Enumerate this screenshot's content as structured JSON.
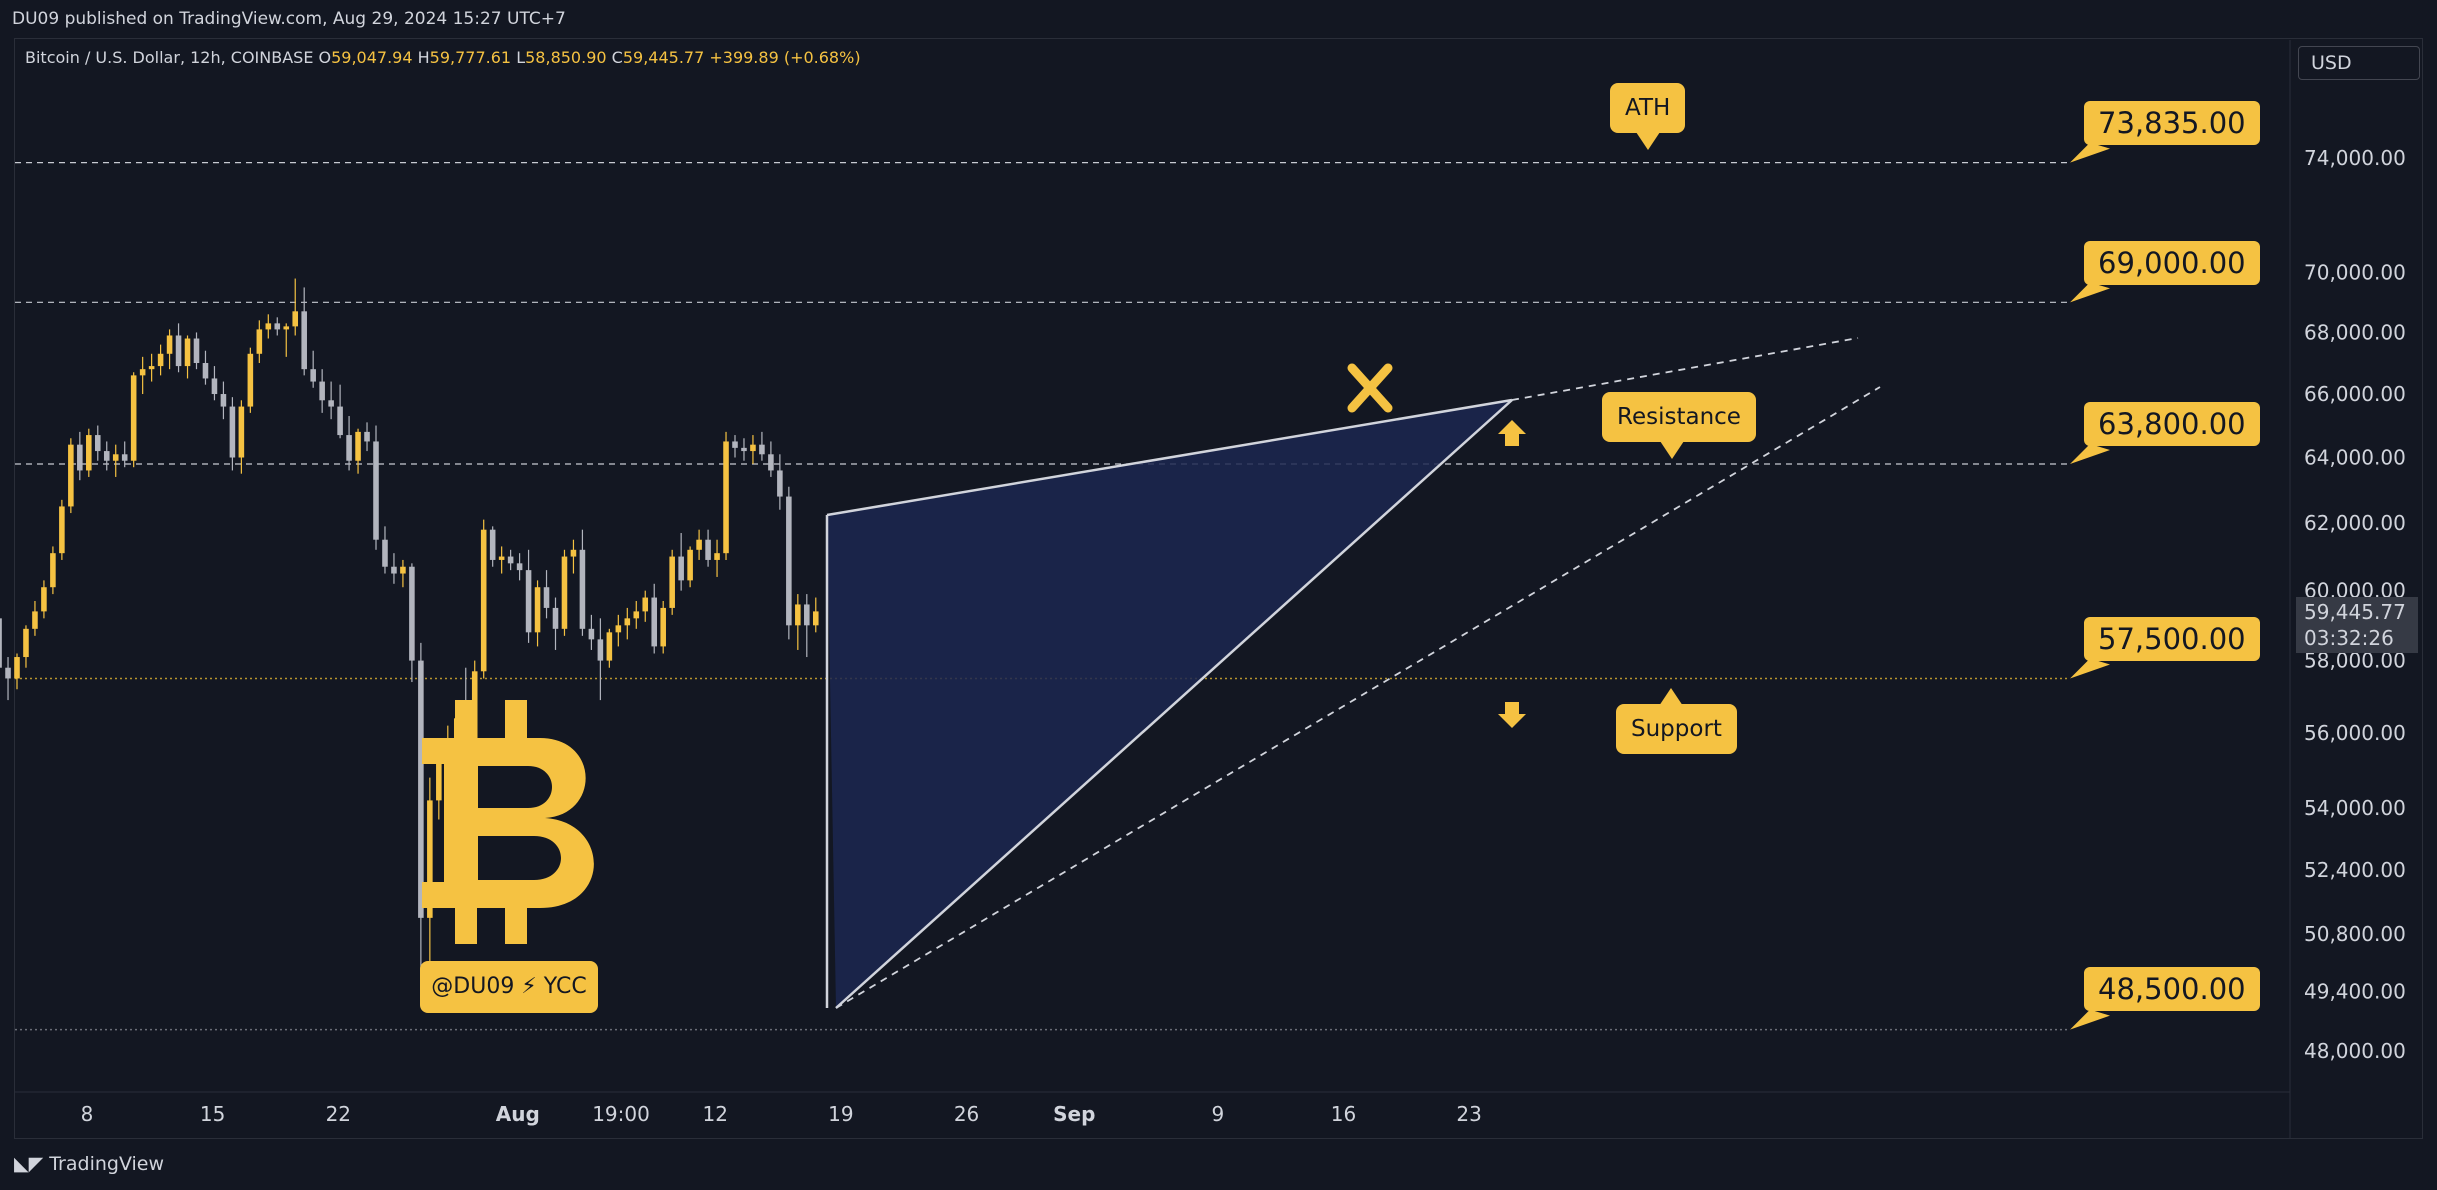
{
  "header": {
    "published": "DU09 published on TradingView.com, Aug 29, 2024 15:27 UTC+7"
  },
  "legend": {
    "symbol": "Bitcoin / U.S. Dollar, 12h, COINBASE",
    "open_key": "O",
    "open": "59,047.94",
    "high_key": "H",
    "high": "59,777.61",
    "low_key": "L",
    "low": "58,850.90",
    "close_key": "C",
    "close": "59,445.77",
    "change": "+399.89 (+0.68%)"
  },
  "currency": "USD",
  "footer": {
    "brand": "TradingView"
  },
  "colors": {
    "background": "#131722",
    "accent": "#f5c242",
    "bear": "#b2b5be",
    "wedge_fill": "#1c2750",
    "text": "#d1d4dc"
  },
  "watermark": {
    "icon": "bitcoin-logo-icon",
    "tag": "@DU09 ⚡ YCC"
  },
  "annotations": {
    "ath": "ATH",
    "resistance": "Resistance",
    "support": "Support",
    "cross_icon": "x-mark-icon",
    "up_icon": "arrow-up-icon",
    "down_icon": "arrow-down-icon"
  },
  "current_price": {
    "price": "59,445.77",
    "countdown": "03:32:26"
  },
  "chart_data": {
    "type": "candlestick",
    "scale": "log",
    "ylim": [
      47500,
      76000
    ],
    "y_ticks": [
      "74,000.00",
      "70,000.00",
      "68,000.00",
      "66,000.00",
      "64,000.00",
      "62,000.00",
      "60,000.00",
      "58,000.00",
      "56,000.00",
      "54,000.00",
      "52,400.00",
      "50,800.00",
      "49,400.00",
      "48,000.00"
    ],
    "y_tick_values": [
      74000,
      70000,
      68000,
      66000,
      64000,
      62000,
      60000,
      58000,
      56000,
      54000,
      52400,
      50800,
      49400,
      48000
    ],
    "x_ticks": [
      "8",
      "15",
      "22",
      "Aug",
      "19:00",
      "12",
      "19",
      "26",
      "Sep",
      "9",
      "16",
      "23"
    ],
    "x_tick_days": [
      7.5,
      14.5,
      21.5,
      31.5,
      37.25,
      42.5,
      49.5,
      56.5,
      62.5,
      70.5,
      77.5,
      84.5
    ],
    "levels": [
      {
        "value": 73835,
        "label": "73,835.00"
      },
      {
        "value": 69000,
        "label": "69,000.00"
      },
      {
        "value": 63800,
        "label": "63,800.00"
      },
      {
        "value": 57500,
        "label": "57,500.00"
      },
      {
        "value": 48500,
        "label": "48,500.00"
      }
    ],
    "candles": [
      [
        56000,
        57200,
        55800,
        57000
      ],
      [
        57000,
        57800,
        56700,
        57100
      ],
      [
        57100,
        57900,
        56800,
        57800
      ],
      [
        57800,
        58800,
        57600,
        58700
      ],
      [
        58700,
        58900,
        56900,
        57200
      ],
      [
        57200,
        57700,
        55200,
        55900
      ],
      [
        55900,
        58400,
        55500,
        57700
      ],
      [
        57700,
        58000,
        56700,
        57200
      ],
      [
        57200,
        58300,
        57000,
        58100
      ],
      [
        58100,
        58600,
        57600,
        58500
      ],
      [
        58500,
        59100,
        58200,
        58700
      ],
      [
        58700,
        58900,
        57500,
        57900
      ],
      [
        57900,
        59400,
        57700,
        59200
      ],
      [
        59200,
        59600,
        57600,
        57800
      ],
      [
        57800,
        58100,
        56900,
        57500
      ],
      [
        57500,
        58200,
        57200,
        58100
      ],
      [
        58100,
        59000,
        57800,
        58900
      ],
      [
        58900,
        59700,
        58700,
        59400
      ],
      [
        59400,
        60300,
        59200,
        60100
      ],
      [
        60100,
        61300,
        59900,
        61100
      ],
      [
        61100,
        62700,
        60900,
        62500
      ],
      [
        62500,
        64600,
        62300,
        64400
      ],
      [
        64400,
        64800,
        63300,
        63600
      ],
      [
        63600,
        64900,
        63400,
        64700
      ],
      [
        64700,
        65000,
        63900,
        64200
      ],
      [
        64200,
        64500,
        63600,
        63900
      ],
      [
        63900,
        64400,
        63400,
        64100
      ],
      [
        64100,
        64500,
        63700,
        63900
      ],
      [
        63900,
        66700,
        63700,
        66600
      ],
      [
        66600,
        67200,
        66000,
        66800
      ],
      [
        66800,
        67300,
        66400,
        66900
      ],
      [
        66900,
        67600,
        66600,
        67300
      ],
      [
        67300,
        68100,
        66800,
        67900
      ],
      [
        67900,
        68300,
        66700,
        66900
      ],
      [
        66900,
        67900,
        66500,
        67800
      ],
      [
        67800,
        68000,
        66800,
        67000
      ],
      [
        67000,
        67400,
        66300,
        66500
      ],
      [
        66500,
        66900,
        65800,
        66000
      ],
      [
        66000,
        66400,
        65200,
        65600
      ],
      [
        65600,
        65900,
        63600,
        64000
      ],
      [
        64000,
        65800,
        63500,
        65600
      ],
      [
        65600,
        67500,
        65400,
        67300
      ],
      [
        67300,
        68400,
        67000,
        68100
      ],
      [
        68100,
        68600,
        67800,
        68300
      ],
      [
        68300,
        68500,
        67900,
        68100
      ],
      [
        68100,
        68300,
        67200,
        68200
      ],
      [
        68200,
        69800,
        67900,
        68700
      ],
      [
        68700,
        69500,
        66600,
        66800
      ],
      [
        66800,
        67400,
        66200,
        66400
      ],
      [
        66400,
        66800,
        65400,
        65800
      ],
      [
        65800,
        66400,
        65200,
        65600
      ],
      [
        65600,
        66300,
        64600,
        64700
      ],
      [
        64700,
        65300,
        63600,
        63900
      ],
      [
        63900,
        64900,
        63500,
        64800
      ],
      [
        64800,
        65100,
        64200,
        64500
      ],
      [
        64500,
        65000,
        61200,
        61500
      ],
      [
        61500,
        61900,
        60500,
        60700
      ],
      [
        60700,
        61100,
        60200,
        60500
      ],
      [
        60500,
        60900,
        60100,
        60700
      ],
      [
        60700,
        60800,
        57400,
        58000
      ],
      [
        58000,
        58500,
        49500,
        51200
      ],
      [
        51200,
        54800,
        49300,
        54200
      ],
      [
        54200,
        55800,
        53700,
        55300
      ],
      [
        55300,
        56200,
        54800,
        55600
      ],
      [
        55600,
        56800,
        55200,
        56400
      ],
      [
        56400,
        57800,
        55400,
        55800
      ],
      [
        55800,
        58000,
        55500,
        57700
      ],
      [
        57700,
        62100,
        57500,
        61800
      ],
      [
        61800,
        61900,
        60700,
        60900
      ],
      [
        60900,
        61300,
        60500,
        61000
      ],
      [
        61000,
        61200,
        60600,
        60800
      ],
      [
        60800,
        61100,
        60300,
        60600
      ],
      [
        60600,
        61200,
        58500,
        58800
      ],
      [
        58800,
        60300,
        58400,
        60100
      ],
      [
        60100,
        60600,
        59200,
        59500
      ],
      [
        59500,
        59800,
        58300,
        58900
      ],
      [
        58900,
        61200,
        58700,
        61000
      ],
      [
        61000,
        61500,
        60500,
        61200
      ],
      [
        61200,
        61800,
        58700,
        58900
      ],
      [
        58900,
        59300,
        58300,
        58600
      ],
      [
        58600,
        59200,
        56900,
        58000
      ],
      [
        58000,
        58900,
        57800,
        58800
      ],
      [
        58800,
        59300,
        58400,
        59000
      ],
      [
        59000,
        59500,
        58600,
        59200
      ],
      [
        59200,
        59700,
        58900,
        59400
      ],
      [
        59400,
        60000,
        59100,
        59800
      ],
      [
        59800,
        60200,
        58200,
        58400
      ],
      [
        58400,
        59700,
        58200,
        59500
      ],
      [
        59500,
        61200,
        59300,
        61000
      ],
      [
        61000,
        61700,
        60000,
        60300
      ],
      [
        60300,
        61300,
        60100,
        61200
      ],
      [
        61200,
        61800,
        60900,
        61500
      ],
      [
        61500,
        61800,
        60700,
        60900
      ],
      [
        60900,
        61500,
        60400,
        61100
      ],
      [
        61100,
        64800,
        60900,
        64500
      ],
      [
        64500,
        64700,
        64000,
        64300
      ],
      [
        64300,
        64600,
        63900,
        64200
      ],
      [
        64200,
        64700,
        63800,
        64400
      ],
      [
        64400,
        64800,
        63900,
        64100
      ],
      [
        64100,
        64500,
        63400,
        63600
      ],
      [
        63600,
        64100,
        62400,
        62800
      ],
      [
        62800,
        63100,
        58600,
        59000
      ],
      [
        59000,
        59900,
        58300,
        59600
      ],
      [
        59600,
        59900,
        58100,
        59000
      ],
      [
        59000,
        59800,
        58800,
        59400
      ]
    ],
    "first_candle_day": 0,
    "candle_step_days": 0.5
  }
}
